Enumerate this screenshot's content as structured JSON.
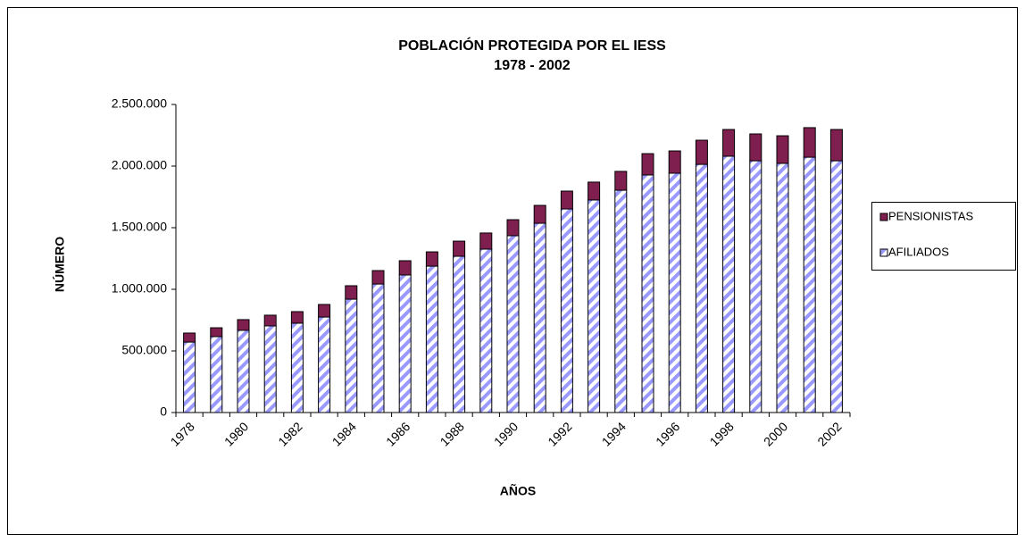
{
  "chart_data": {
    "type": "stacked_bar",
    "title": "POBLACIÓN PROTEGIDA POR EL IESS",
    "subtitle": "1978 - 2002",
    "y_label": "NÚMERO",
    "x_label": "AÑOS",
    "categories": [
      "1978",
      null,
      "1980",
      null,
      "1982",
      null,
      "1984",
      null,
      "1986",
      null,
      "1988",
      null,
      "1990",
      null,
      "1992",
      null,
      "1994",
      null,
      "1996",
      null,
      "1998",
      null,
      "2000",
      null,
      "2002"
    ],
    "series": [
      {
        "name": "AFILIADOS",
        "color": "#9999ff",
        "pattern": "diagonal-stripes",
        "values": [
          572000,
          616000,
          667000,
          703000,
          725000,
          775000,
          920000,
          1043000,
          1116000,
          1188000,
          1268000,
          1326000,
          1435000,
          1536000,
          1652000,
          1725000,
          1804000,
          1928000,
          1942000,
          2014000,
          2080000,
          2043000,
          2022000,
          2072000,
          2043000
        ]
      },
      {
        "name": "PENSIONISTAS",
        "color": "#7f1f4f",
        "values": [
          73000,
          72000,
          87000,
          87000,
          94000,
          102000,
          109000,
          109000,
          116000,
          116000,
          123000,
          131000,
          130000,
          145000,
          145000,
          145000,
          153000,
          173000,
          181000,
          196000,
          217000,
          218000,
          224000,
          240000,
          254000
        ]
      }
    ],
    "ylim": [
      0,
      2500000
    ],
    "yticks": [
      0,
      {
        "value": 500000,
        "label": "500.000"
      },
      {
        "value": 1000000,
        "label": "1.000.000"
      },
      {
        "value": 1500000,
        "label": "1.500.000"
      },
      {
        "value": 2000000,
        "label": "2.000.000"
      },
      {
        "value": 2500000,
        "label": "2.500.000"
      }
    ],
    "legend": "right",
    "grid": false
  }
}
